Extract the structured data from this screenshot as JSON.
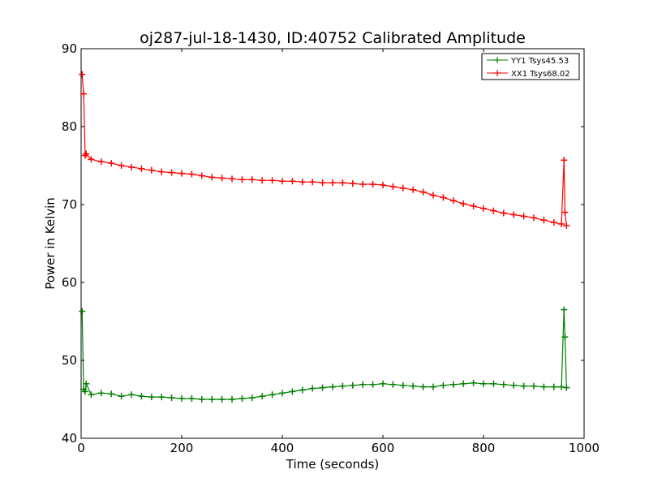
{
  "chart_data": {
    "type": "line",
    "title": "oj287-jul-18-1430, ID:40752 Calibrated Amplitude",
    "xlabel": "Time (seconds)",
    "ylabel": "Power in Kelvin",
    "xlim": [
      0,
      1000
    ],
    "ylim": [
      40,
      90
    ],
    "xticks": [
      "0",
      "200",
      "400",
      "600",
      "800",
      "1000"
    ],
    "yticks": [
      "40",
      "50",
      "60",
      "70",
      "80",
      "90"
    ],
    "grid": false,
    "legend_position": "top-right",
    "marker": "+",
    "series": [
      {
        "name": "YY1 Tsys45.53",
        "color": "#008000",
        "x": [
          2,
          5,
          8,
          10,
          20,
          40,
          60,
          80,
          100,
          120,
          140,
          160,
          180,
          200,
          220,
          240,
          260,
          280,
          300,
          320,
          340,
          360,
          380,
          400,
          420,
          440,
          460,
          480,
          500,
          520,
          540,
          560,
          580,
          600,
          620,
          640,
          660,
          680,
          700,
          720,
          740,
          760,
          780,
          800,
          820,
          840,
          860,
          880,
          900,
          920,
          940,
          955,
          960,
          962,
          965
        ],
        "y": [
          56.3,
          46.3,
          46.0,
          47.0,
          45.6,
          45.8,
          45.7,
          45.4,
          45.6,
          45.4,
          45.3,
          45.3,
          45.2,
          45.1,
          45.1,
          45.0,
          45.0,
          45.0,
          45.0,
          45.1,
          45.2,
          45.4,
          45.6,
          45.8,
          46.0,
          46.2,
          46.4,
          46.5,
          46.6,
          46.7,
          46.8,
          46.9,
          46.9,
          47.0,
          46.9,
          46.8,
          46.7,
          46.6,
          46.6,
          46.8,
          46.9,
          47.0,
          47.1,
          47.0,
          47.0,
          46.9,
          46.8,
          46.7,
          46.7,
          46.6,
          46.6,
          46.6,
          56.5,
          53.0,
          46.5
        ]
      },
      {
        "name": "XX1 Tsys68.02",
        "color": "#ff0000",
        "x": [
          2,
          5,
          8,
          10,
          20,
          40,
          60,
          80,
          100,
          120,
          140,
          160,
          180,
          200,
          220,
          240,
          260,
          280,
          300,
          320,
          340,
          360,
          380,
          400,
          420,
          440,
          460,
          480,
          500,
          520,
          540,
          560,
          580,
          600,
          620,
          640,
          660,
          680,
          700,
          720,
          740,
          760,
          780,
          800,
          820,
          840,
          860,
          880,
          900,
          920,
          940,
          955,
          960,
          962,
          965
        ],
        "y": [
          86.7,
          84.2,
          76.3,
          76.5,
          75.8,
          75.5,
          75.3,
          75.0,
          74.8,
          74.6,
          74.4,
          74.2,
          74.1,
          74.0,
          73.9,
          73.7,
          73.5,
          73.4,
          73.3,
          73.2,
          73.2,
          73.1,
          73.1,
          73.0,
          73.0,
          72.9,
          72.9,
          72.8,
          72.8,
          72.8,
          72.7,
          72.6,
          72.6,
          72.5,
          72.3,
          72.1,
          71.9,
          71.6,
          71.2,
          70.9,
          70.5,
          70.1,
          69.8,
          69.5,
          69.2,
          68.9,
          68.7,
          68.5,
          68.3,
          68.0,
          67.7,
          67.5,
          75.7,
          69.0,
          67.3
        ]
      }
    ]
  }
}
